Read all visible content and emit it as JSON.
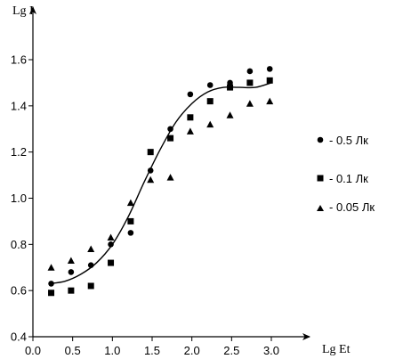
{
  "chart_data": {
    "type": "scatter",
    "xlabel": "Lg Et",
    "ylabel": "Lg I",
    "xlim": [
      0.0,
      3.0
    ],
    "ylim": [
      0.4,
      1.6
    ],
    "xticks": [
      "0.0",
      "0.5",
      "1.0",
      "1.5",
      "2.0",
      "2.5",
      "3.0"
    ],
    "yticks": [
      "0.4",
      "0.6",
      "0.8",
      "1.0",
      "1.2",
      "1.4",
      "1.6"
    ],
    "legend_position": "right",
    "series": [
      {
        "name": "- 0.5 Лк",
        "marker": "circle",
        "x": [
          0.23,
          0.48,
          0.73,
          0.98,
          1.23,
          1.48,
          1.73,
          1.98,
          2.23,
          2.48,
          2.73,
          2.98
        ],
        "y": [
          0.63,
          0.68,
          0.71,
          0.8,
          0.85,
          1.12,
          1.3,
          1.45,
          1.49,
          1.5,
          1.55,
          1.56
        ]
      },
      {
        "name": "- 0.1 Лк",
        "marker": "square",
        "x": [
          0.23,
          0.48,
          0.73,
          0.98,
          1.23,
          1.48,
          1.73,
          1.98,
          2.23,
          2.48,
          2.73,
          2.98
        ],
        "y": [
          0.59,
          0.6,
          0.62,
          0.72,
          0.9,
          1.2,
          1.26,
          1.35,
          1.42,
          1.48,
          1.5,
          1.51
        ]
      },
      {
        "name": "- 0.05 Лк",
        "marker": "triangle",
        "x": [
          0.23,
          0.48,
          0.73,
          0.98,
          1.23,
          1.48,
          1.73,
          1.98,
          2.23,
          2.48,
          2.73,
          2.98
        ],
        "y": [
          0.7,
          0.73,
          0.78,
          0.83,
          0.98,
          1.08,
          1.09,
          1.29,
          1.32,
          1.36,
          1.41,
          1.42
        ]
      }
    ],
    "fit_curve": {
      "x": [
        0.2,
        0.4,
        0.6,
        0.8,
        1.0,
        1.2,
        1.4,
        1.6,
        1.8,
        2.0,
        2.2,
        2.4,
        2.6,
        2.8,
        3.0
      ],
      "y": [
        0.63,
        0.64,
        0.67,
        0.72,
        0.8,
        0.92,
        1.07,
        1.21,
        1.33,
        1.41,
        1.46,
        1.48,
        1.48,
        1.48,
        1.5
      ]
    }
  }
}
